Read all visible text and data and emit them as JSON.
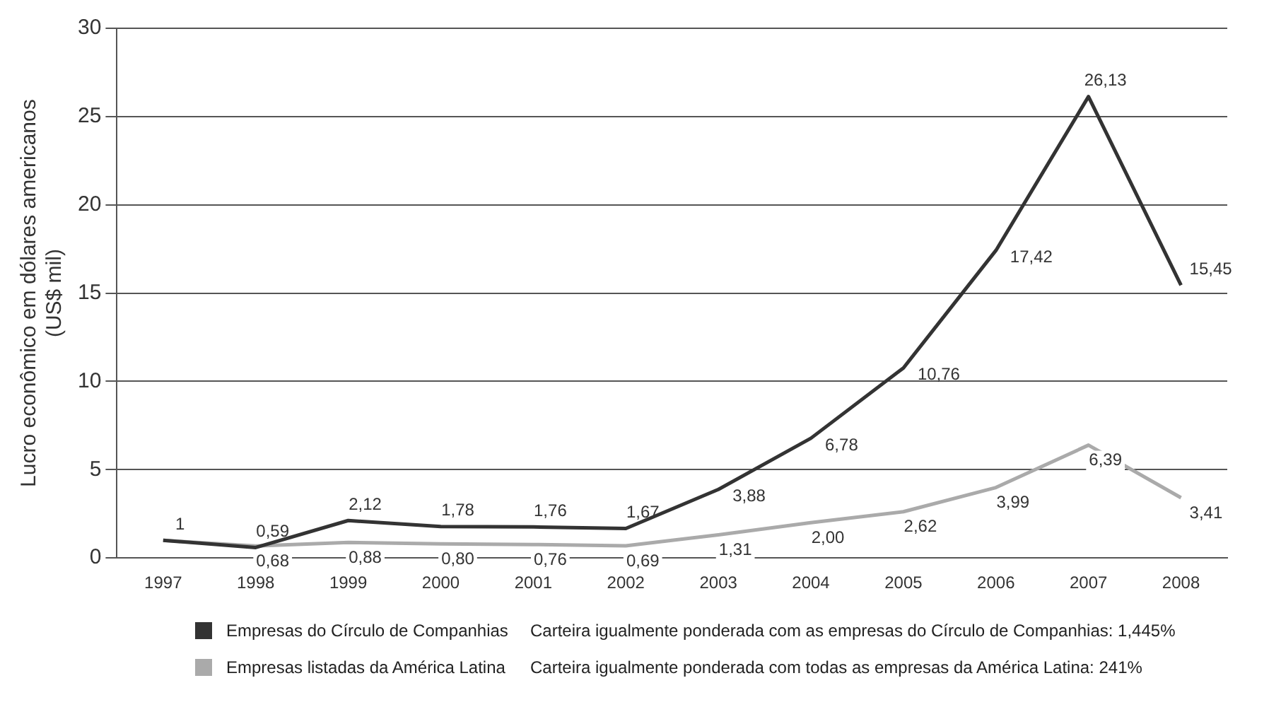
{
  "chart_data": {
    "type": "line",
    "ylabel": "Lucro econômico em dólares americanos\n(US$ mil)",
    "categories": [
      "1997",
      "1998",
      "1999",
      "2000",
      "2001",
      "2002",
      "2003",
      "2004",
      "2005",
      "2006",
      "2007",
      "2008"
    ],
    "series": [
      {
        "name": "Empresas do Círculo de Companhias",
        "color": "#333333",
        "values": [
          1,
          0.59,
          2.12,
          1.78,
          1.76,
          1.67,
          3.88,
          6.78,
          10.76,
          17.42,
          26.13,
          15.45
        ],
        "value_labels": [
          "1",
          "0,59",
          "2,12",
          "1,78",
          "1,76",
          "1,67",
          "3,88",
          "6,78",
          "10,76",
          "17,42",
          "26,13",
          "15,45"
        ]
      },
      {
        "name": "Empresas listadas da América Latina",
        "color": "#aaaaaa",
        "values": [
          1,
          0.68,
          0.88,
          0.8,
          0.76,
          0.69,
          1.31,
          2.0,
          2.62,
          3.99,
          6.39,
          3.41
        ],
        "value_labels": [
          null,
          "0,68",
          "0,88",
          "0,80",
          "0,76",
          "0,69",
          "1,31",
          "2,00",
          "2,62",
          "3,99",
          "6,39",
          "3,41"
        ]
      }
    ],
    "annotations": [
      "Carteira igualmente ponderada com as empresas do Círculo de Companhias: 1,445%",
      "Carteira igualmente ponderada com todas as empresas da América Latina: 241%"
    ],
    "ylim": [
      0,
      30
    ],
    "yticks": [
      0,
      5,
      10,
      15,
      20,
      25,
      30
    ],
    "grid": "y",
    "legend": "bottom",
    "marker": "none",
    "line_style": "solid"
  }
}
